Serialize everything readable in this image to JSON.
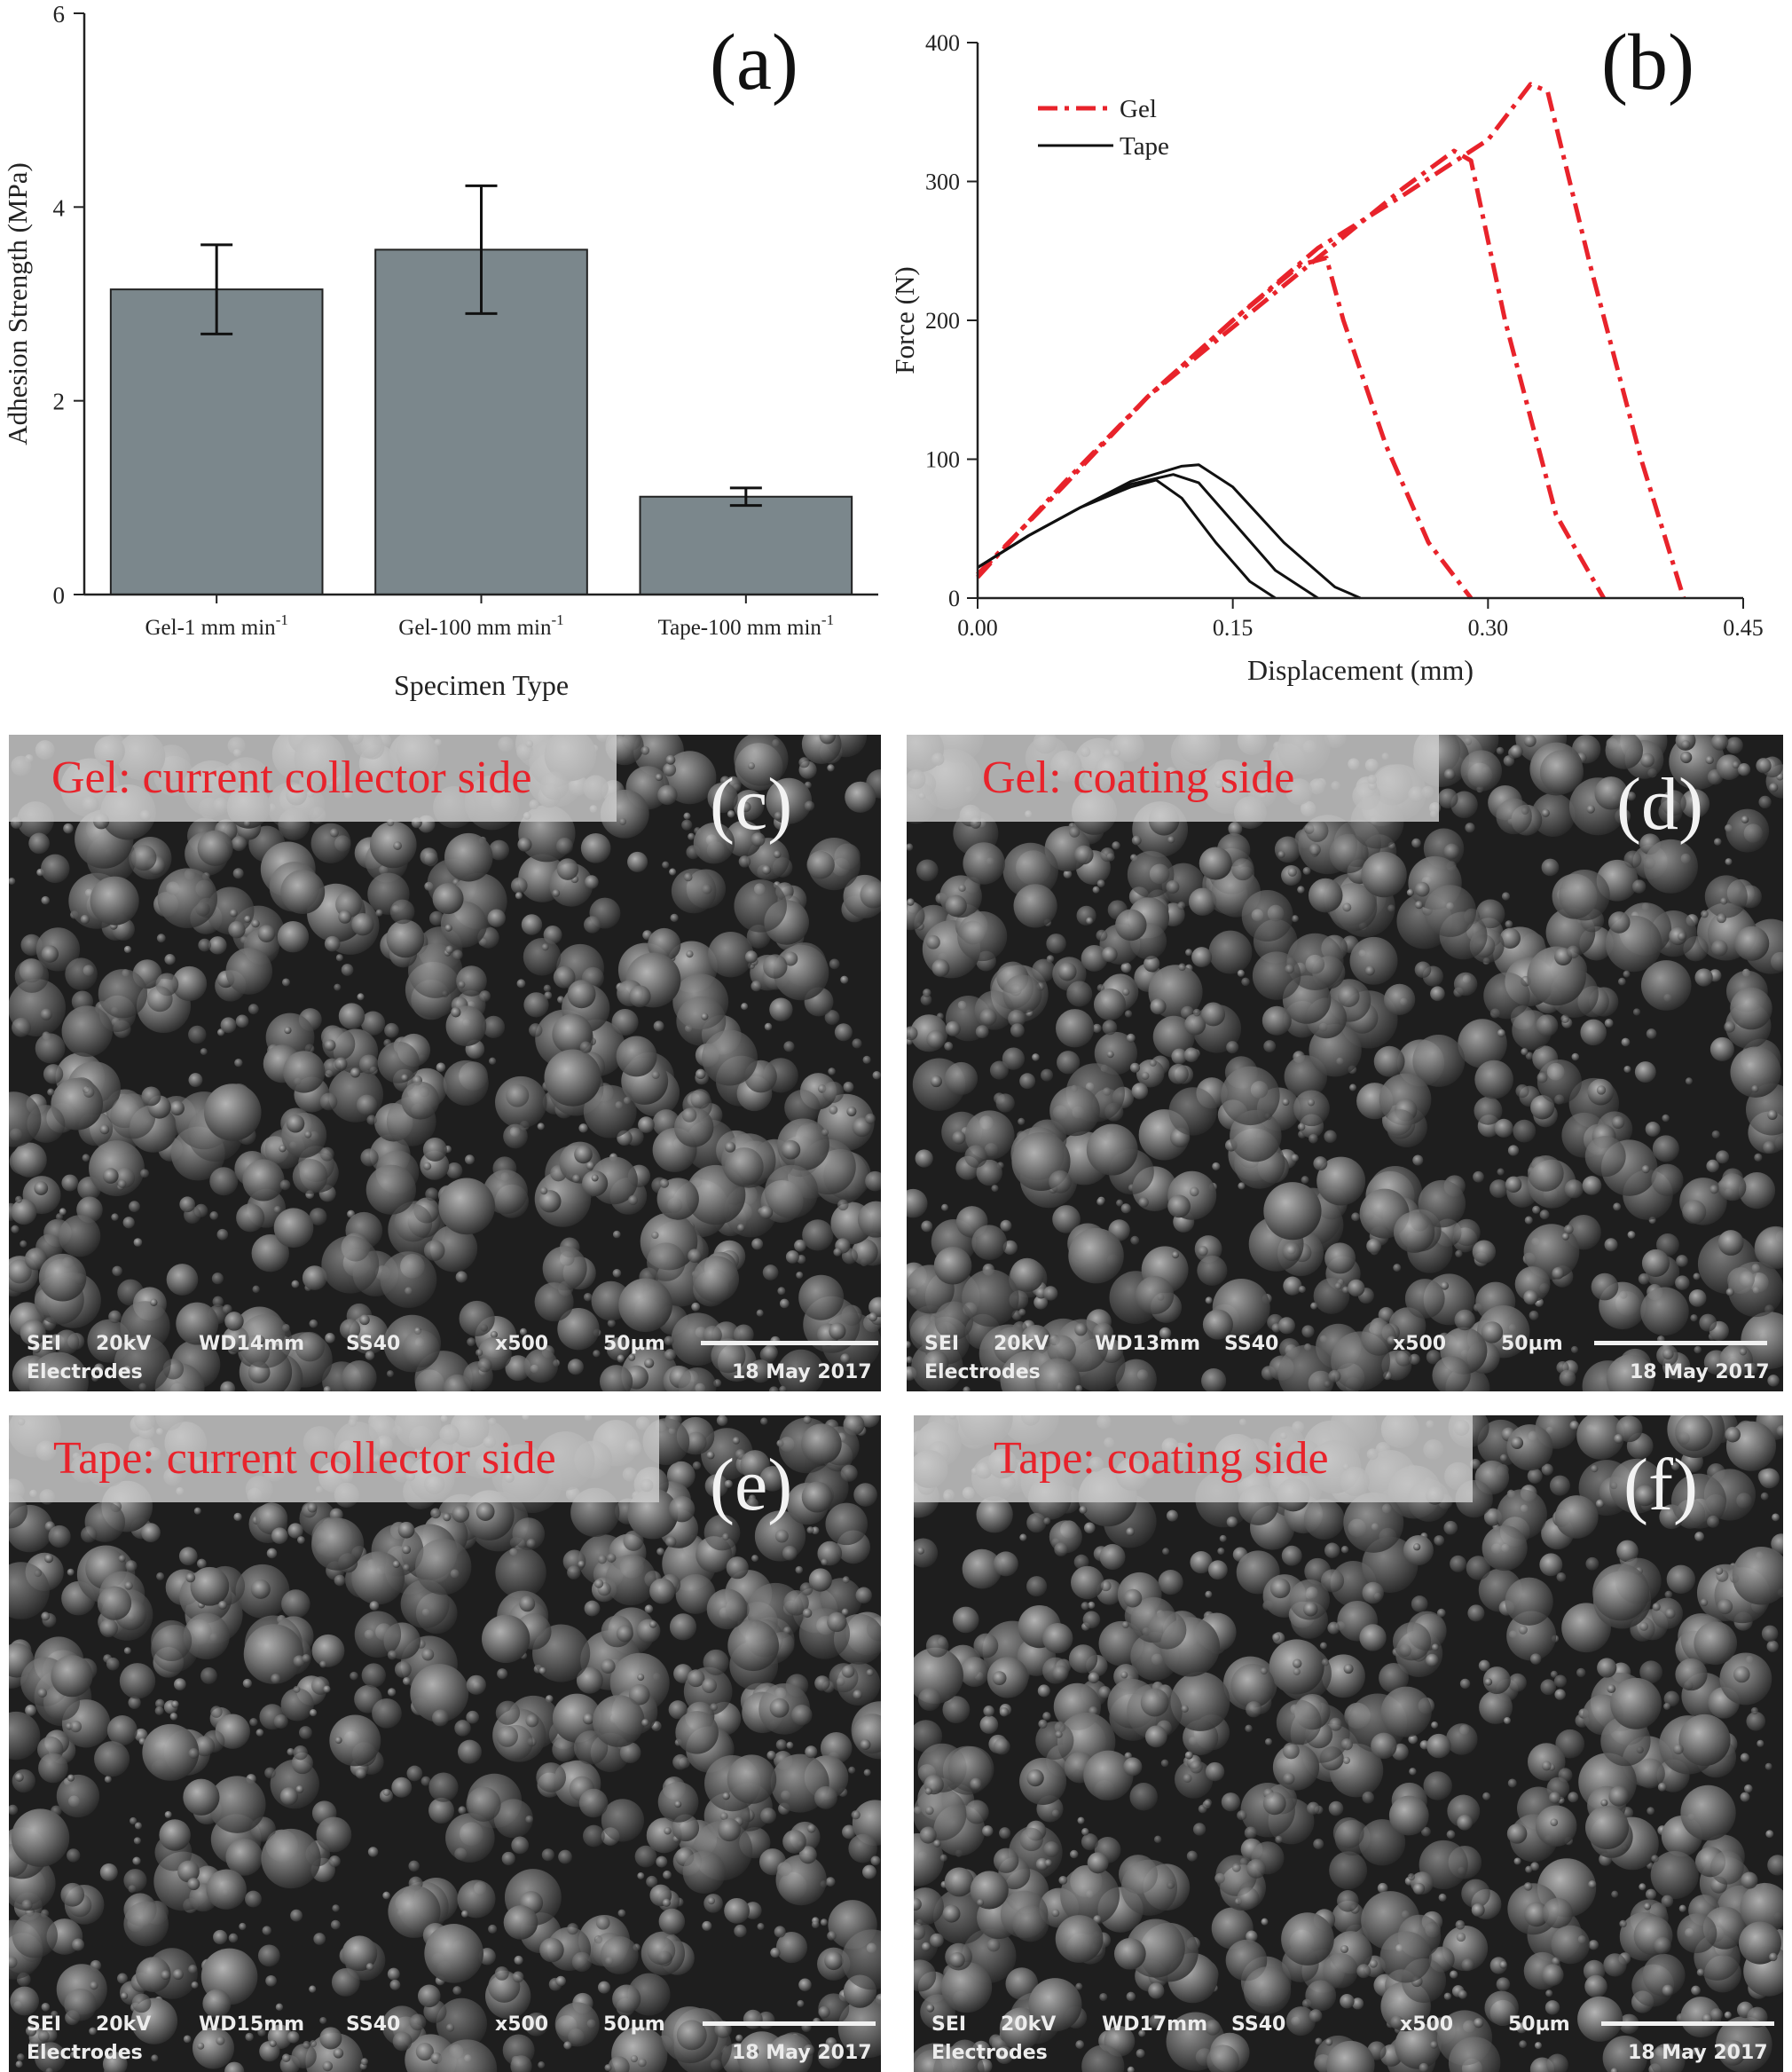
{
  "chart_data": [
    {
      "panel": "(a)",
      "type": "bar",
      "categories": [
        "Gel-1 mm min",
        "Gel-100 mm min",
        "Tape-100 mm min"
      ],
      "category_superscript": "-1",
      "values": [
        3.15,
        3.56,
        1.01
      ],
      "error": [
        0.46,
        0.66,
        0.09
      ],
      "xlabel": "Specimen Type",
      "ylabel": "Adhesion Strength (MPa)",
      "ylim": [
        0,
        6
      ],
      "yticks": [
        0,
        2,
        4,
        6
      ],
      "bar_color": "#7b878c",
      "grid": false
    },
    {
      "panel": "(b)",
      "type": "line",
      "xlabel": "Displacement (mm)",
      "ylabel": "Force (N)",
      "xlim": [
        0,
        0.45
      ],
      "ylim": [
        0,
        400
      ],
      "xticks": [
        "0.00",
        "0.15",
        "0.30",
        "0.45"
      ],
      "yticks": [
        "0",
        "100",
        "200",
        "300",
        "400"
      ],
      "legend": {
        "position": "top-left",
        "entries": [
          "Gel",
          "Tape"
        ]
      },
      "grid": false,
      "series": [
        {
          "name": "Gel",
          "color": "#e8232b",
          "style": "dash-dot",
          "x": [
            0,
            0.05,
            0.1,
            0.15,
            0.2,
            0.25,
            0.3,
            0.325,
            0.335,
            0.36,
            0.39,
            0.415
          ],
          "y": [
            17,
            80,
            145,
            200,
            252,
            290,
            330,
            370,
            365,
            240,
            100,
            0
          ]
        },
        {
          "name": "Gel",
          "color": "#e8232b",
          "style": "dash-dot",
          "x": [
            0,
            0.05,
            0.1,
            0.15,
            0.2,
            0.25,
            0.28,
            0.29,
            0.31,
            0.34,
            0.368
          ],
          "y": [
            17,
            80,
            145,
            195,
            245,
            295,
            322,
            315,
            200,
            60,
            0
          ]
        },
        {
          "name": "Gel",
          "color": "#e8232b",
          "style": "dash-dot",
          "x": [
            0,
            0.05,
            0.1,
            0.15,
            0.19,
            0.205,
            0.215,
            0.24,
            0.265,
            0.29
          ],
          "y": [
            15,
            82,
            145,
            200,
            240,
            245,
            200,
            110,
            40,
            0
          ]
        },
        {
          "name": "Tape",
          "color": "#111111",
          "style": "solid",
          "x": [
            0,
            0.03,
            0.06,
            0.09,
            0.12,
            0.13,
            0.15,
            0.18,
            0.21,
            0.225
          ],
          "y": [
            22,
            45,
            65,
            84,
            95,
            96,
            80,
            40,
            8,
            0
          ]
        },
        {
          "name": "Tape",
          "color": "#111111",
          "style": "solid",
          "x": [
            0,
            0.03,
            0.06,
            0.09,
            0.115,
            0.13,
            0.15,
            0.175,
            0.2
          ],
          "y": [
            22,
            45,
            65,
            82,
            89,
            83,
            55,
            20,
            0
          ]
        },
        {
          "name": "Tape",
          "color": "#111111",
          "style": "solid",
          "x": [
            0,
            0.03,
            0.06,
            0.09,
            0.105,
            0.12,
            0.14,
            0.16,
            0.175
          ],
          "y": [
            22,
            45,
            65,
            80,
            85,
            72,
            40,
            12,
            0
          ]
        }
      ]
    }
  ],
  "micrographs": [
    {
      "label": "Gel: current collector side",
      "letter": "(c)",
      "info": {
        "mode": "SEI",
        "kv": "20kV",
        "wd": "WD14mm",
        "ss": "SS40",
        "mag": "x500",
        "scale": "50µm",
        "sample": "Electrodes",
        "date": "18 May 2017"
      }
    },
    {
      "label": "Gel: coating side",
      "letter": "(d)",
      "info": {
        "mode": "SEI",
        "kv": "20kV",
        "wd": "WD13mm",
        "ss": "SS40",
        "mag": "x500",
        "scale": "50µm",
        "sample": "Electrodes",
        "date": "18 May 2017"
      }
    },
    {
      "label": "Tape: current collector side",
      "letter": "(e)",
      "info": {
        "mode": "SEI",
        "kv": "20kV",
        "wd": "WD15mm",
        "ss": "SS40",
        "mag": "x500",
        "scale": "50µm",
        "sample": "Electrodes",
        "date": "18 May 2017"
      }
    },
    {
      "label": "Tape: coating side",
      "letter": "(f)",
      "info": {
        "mode": "SEI",
        "kv": "20kV",
        "wd": "WD17mm",
        "ss": "SS40",
        "mag": "x500",
        "scale": "50µm",
        "sample": "Electrodes",
        "date": "18 May 2017"
      }
    }
  ]
}
